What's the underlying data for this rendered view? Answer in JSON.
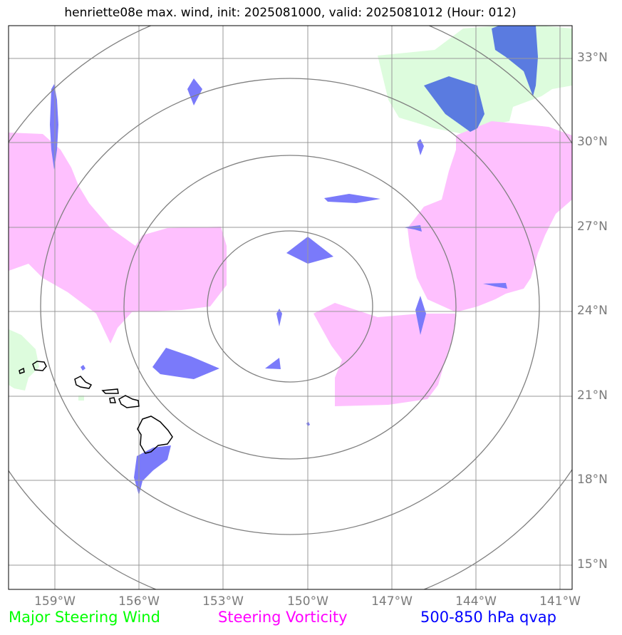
{
  "title": "henriette08e max. wind, init: 2025081000, valid: 2025081012 (Hour: 012)",
  "map": {
    "lon_ticks": [
      "159°W",
      "156°W",
      "153°W",
      "150°W",
      "147°W",
      "144°W",
      "141°W"
    ],
    "lat_ticks": [
      "33°N",
      "30°N",
      "27°N",
      "24°N",
      "21°N",
      "18°N",
      "15°N"
    ],
    "center": {
      "lon": -150,
      "lat": 24
    },
    "range_rings_deg": [
      3,
      6,
      9,
      12
    ]
  },
  "legend": [
    {
      "label": "Major Steering Wind",
      "color": "#00ff00"
    },
    {
      "label": "Steering Vorticity",
      "color": "#ff00ff"
    },
    {
      "label": "500-850 hPa qvap",
      "color": "#0000ff"
    }
  ],
  "colors": {
    "wind_fill": "#ddfcdd",
    "vort_fill": "#fec0fe",
    "qvap_fill": "#7a7afa",
    "qvap_dark": "#5a7be0",
    "grid": "#999999",
    "rings": "#808080",
    "coast": "#000000"
  }
}
